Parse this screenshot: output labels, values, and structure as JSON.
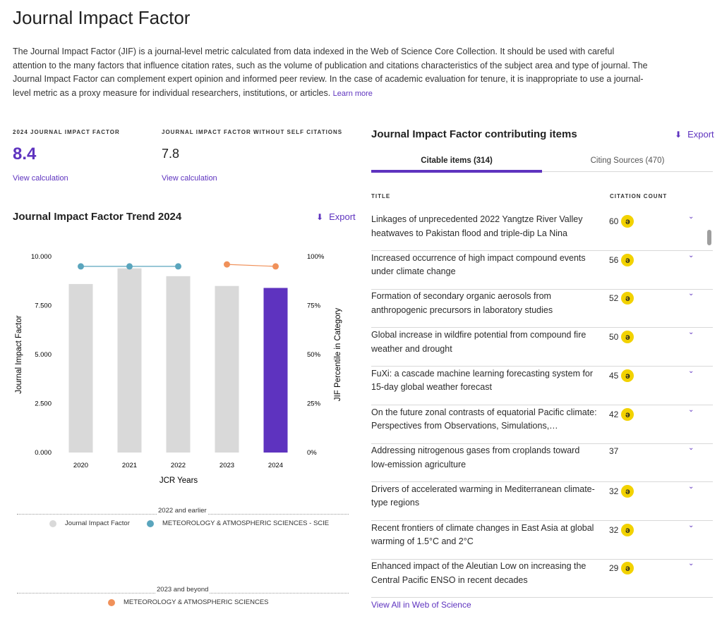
{
  "page": {
    "title": "Journal Impact Factor",
    "description": "The Journal Impact Factor (JIF) is a journal-level metric calculated from data indexed in the Web of Science Core Collection. It should be used with careful attention to the many factors that influence citation rates, such as the volume of publication and citations characteristics of the subject area and type of journal. The Journal Impact Factor can complement expert opinion and informed peer review. In the case of academic evaluation for tenure, it is inappropriate to use a journal-level metric as a proxy measure for individual researchers, institutions, or articles.",
    "learn_more": "Learn more"
  },
  "metrics": {
    "jif": {
      "label": "2024 JOURNAL IMPACT FACTOR",
      "value": "8.4",
      "link": "View calculation"
    },
    "jif_no_self": {
      "label": "JOURNAL IMPACT FACTOR WITHOUT SELF CITATIONS",
      "value": "7.8",
      "link": "View calculation"
    }
  },
  "trend": {
    "title": "Journal Impact Factor Trend 2024",
    "export_label": "Export"
  },
  "chart_data": {
    "type": "bar",
    "categories": [
      "2020",
      "2021",
      "2022",
      "2023",
      "2024"
    ],
    "series": [
      {
        "name": "Journal Impact Factor",
        "type": "bar",
        "axis": "left",
        "values": [
          8.6,
          9.4,
          9.0,
          8.5,
          8.4
        ],
        "colors": [
          "#d9d9d9",
          "#d9d9d9",
          "#d9d9d9",
          "#d9d9d9",
          "#5e33bf"
        ]
      },
      {
        "name": "METEOROLOGY & ATMOSPHERIC SCIENCES - SCIE",
        "type": "line",
        "axis": "right",
        "color": "#5aa5bd",
        "x": [
          "2020",
          "2021",
          "2022"
        ],
        "values": [
          95,
          95,
          95
        ]
      },
      {
        "name": "METEOROLOGY & ATMOSPHERIC SCIENCES",
        "type": "line",
        "axis": "right",
        "color": "#f0915a",
        "x": [
          "2023",
          "2024"
        ],
        "values": [
          96,
          95
        ]
      }
    ],
    "xlabel": "JCR Years",
    "ylabel": "Journal Impact Factor",
    "y2label": "JIF Percentile in Category",
    "ylim": [
      0,
      10
    ],
    "y2lim": [
      0,
      100
    ],
    "yticks": [
      "10.000",
      "7.500",
      "5.000",
      "2.500",
      "0.000"
    ],
    "y2ticks": [
      "100%",
      "75%",
      "50%",
      "25%",
      "0%"
    ],
    "legend": {
      "group1_title": "2022 and earlier",
      "group1_items": [
        "Journal Impact Factor",
        "METEOROLOGY & ATMOSPHERIC SCIENCES - SCIE"
      ],
      "group2_title": "2023 and beyond",
      "group2_items": [
        "METEOROLOGY & ATMOSPHERIC SCIENCES"
      ],
      "colors": {
        "jif": "#d9d9d9",
        "scie": "#5aa5bd",
        "new": "#f0915a"
      }
    }
  },
  "contributing": {
    "title": "Journal Impact Factor contributing items",
    "export_label": "Export",
    "tabs": [
      {
        "label": "Citable items (314)",
        "active": true
      },
      {
        "label": "Citing Sources (470)",
        "active": false
      }
    ],
    "col_title": "TITLE",
    "col_count": "CITATION COUNT",
    "rows": [
      {
        "title": "Linkages of unprecedented 2022 Yangtze River Valley heatwaves to Pakistan flood and triple-dip La Nina",
        "count": "60",
        "oa": true
      },
      {
        "title": "Increased occurrence of high impact compound events under climate change",
        "count": "56",
        "oa": true
      },
      {
        "title": "Formation of secondary organic aerosols from anthropogenic precursors in laboratory studies",
        "count": "52",
        "oa": true
      },
      {
        "title": "Global increase in wildfire potential from compound fire weather and drought",
        "count": "50",
        "oa": true
      },
      {
        "title": "FuXi: a cascade machine learning forecasting system for 15-day global weather forecast",
        "count": "45",
        "oa": true
      },
      {
        "title": "On the future zonal contrasts of equatorial Pacific climate: Perspectives from Observations, Simulations,…",
        "count": "42",
        "oa": true
      },
      {
        "title": "Addressing nitrogenous gases from croplands toward low-emission agriculture",
        "count": "37",
        "oa": false
      },
      {
        "title": "Drivers of accelerated warming in Mediterranean climate-type regions",
        "count": "32",
        "oa": true
      },
      {
        "title": "Recent frontiers of climate changes in East Asia at global warming of 1.5°C and 2°C",
        "count": "32",
        "oa": true
      },
      {
        "title": "Enhanced impact of the Aleutian Low on increasing the Central Pacific ENSO in recent decades",
        "count": "29",
        "oa": true
      }
    ],
    "view_all": "View All in Web of Science"
  },
  "colors": {
    "accent": "#5e33bf",
    "oa_badge": "#f2d200"
  },
  "icons": {
    "export": "download-icon",
    "row_expand": "chevron-down-icon",
    "open_access": "open-access-icon"
  }
}
